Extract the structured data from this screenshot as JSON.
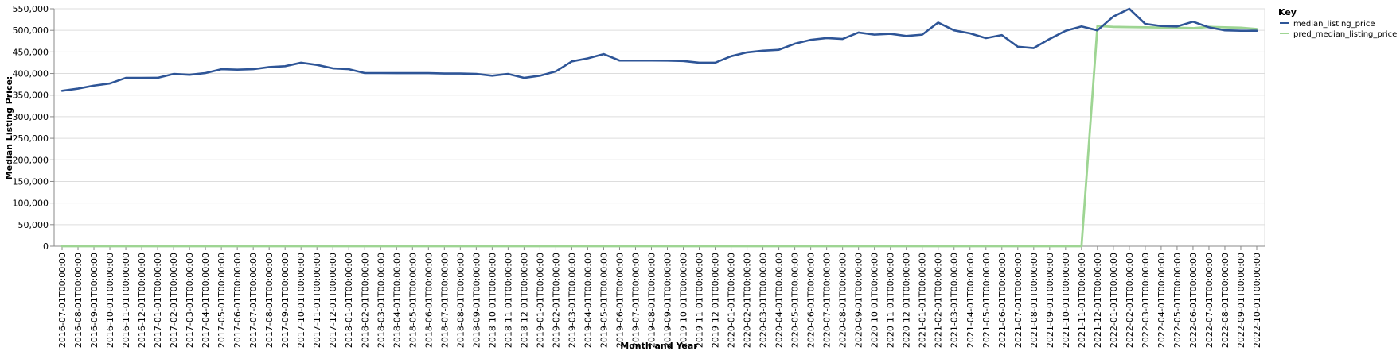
{
  "chart_data": {
    "type": "line",
    "xlabel": "Month and Year",
    "ylabel": "Median Listing Price:",
    "ylim": [
      0,
      550000
    ],
    "y_ticks": [
      "0",
      "50,000",
      "100,000",
      "150,000",
      "200,000",
      "250,000",
      "300,000",
      "350,000",
      "400,000",
      "450,000",
      "500,000",
      "550,000"
    ],
    "y_tick_values": [
      0,
      50000,
      100000,
      150000,
      200000,
      250000,
      300000,
      350000,
      400000,
      450000,
      500000,
      550000
    ],
    "grid": true,
    "legend": {
      "title": "Key",
      "position": "top-right"
    },
    "x": [
      "2016-07-01T00:00:00",
      "2016-08-01T00:00:00",
      "2016-09-01T00:00:00",
      "2016-10-01T00:00:00",
      "2016-11-01T00:00:00",
      "2016-12-01T00:00:00",
      "2017-01-01T00:00:00",
      "2017-02-01T00:00:00",
      "2017-03-01T00:00:00",
      "2017-04-01T00:00:00",
      "2017-05-01T00:00:00",
      "2017-06-01T00:00:00",
      "2017-07-01T00:00:00",
      "2017-08-01T00:00:00",
      "2017-09-01T00:00:00",
      "2017-10-01T00:00:00",
      "2017-11-01T00:00:00",
      "2017-12-01T00:00:00",
      "2018-01-01T00:00:00",
      "2018-02-01T00:00:00",
      "2018-03-01T00:00:00",
      "2018-04-01T00:00:00",
      "2018-05-01T00:00:00",
      "2018-06-01T00:00:00",
      "2018-07-01T00:00:00",
      "2018-08-01T00:00:00",
      "2018-09-01T00:00:00",
      "2018-10-01T00:00:00",
      "2018-11-01T00:00:00",
      "2018-12-01T00:00:00",
      "2019-01-01T00:00:00",
      "2019-02-01T00:00:00",
      "2019-03-01T00:00:00",
      "2019-04-01T00:00:00",
      "2019-05-01T00:00:00",
      "2019-06-01T00:00:00",
      "2019-07-01T00:00:00",
      "2019-08-01T00:00:00",
      "2019-09-01T00:00:00",
      "2019-10-01T00:00:00",
      "2019-11-01T00:00:00",
      "2019-12-01T00:00:00",
      "2020-01-01T00:00:00",
      "2020-02-01T00:00:00",
      "2020-03-01T00:00:00",
      "2020-04-01T00:00:00",
      "2020-05-01T00:00:00",
      "2020-06-01T00:00:00",
      "2020-07-01T00:00:00",
      "2020-08-01T00:00:00",
      "2020-09-01T00:00:00",
      "2020-10-01T00:00:00",
      "2020-11-01T00:00:00",
      "2020-12-01T00:00:00",
      "2021-01-01T00:00:00",
      "2021-02-01T00:00:00",
      "2021-03-01T00:00:00",
      "2021-04-01T00:00:00",
      "2021-05-01T00:00:00",
      "2021-06-01T00:00:00",
      "2021-07-01T00:00:00",
      "2021-08-01T00:00:00",
      "2021-09-01T00:00:00",
      "2021-10-01T00:00:00",
      "2021-11-01T00:00:00",
      "2021-12-01T00:00:00",
      "2022-01-01T00:00:00",
      "2022-02-01T00:00:00",
      "2022-03-01T00:00:00",
      "2022-04-01T00:00:00",
      "2022-05-01T00:00:00",
      "2022-06-01T00:00:00",
      "2022-07-01T00:00:00",
      "2022-08-01T00:00:00",
      "2022-09-01T00:00:00",
      "2022-10-01T00:00:00"
    ],
    "series": [
      {
        "name": "median_listing_price",
        "color": "#2e5597",
        "values": [
          359900,
          365000,
          372000,
          377000,
          389900,
          389900,
          390000,
          399000,
          397000,
          401000,
          410000,
          409000,
          410000,
          414900,
          417000,
          425000,
          420000,
          412000,
          410000,
          401000,
          401000,
          400900,
          400900,
          400900,
          400000,
          399900,
          399000,
          394900,
          399000,
          389900,
          394900,
          405000,
          428000,
          435000,
          445000,
          430000,
          430000,
          430000,
          429900,
          429000,
          425000,
          425000,
          440000,
          449000,
          452900,
          455000,
          469000,
          478000,
          482000,
          480000,
          495000,
          490000,
          492000,
          487000,
          490000,
          518000,
          500000,
          493000,
          482000,
          489000,
          462000,
          458900,
          480000,
          499000,
          509000,
          500000,
          532000,
          550000,
          515000,
          510000,
          509000,
          520000,
          507000,
          500000,
          499000,
          499000
        ]
      },
      {
        "name": "pred_median_listing_price",
        "color": "#9ed593",
        "values": [
          0,
          0,
          0,
          0,
          0,
          0,
          0,
          0,
          0,
          0,
          0,
          0,
          0,
          0,
          0,
          0,
          0,
          0,
          0,
          0,
          0,
          0,
          0,
          0,
          0,
          0,
          0,
          0,
          0,
          0,
          0,
          0,
          0,
          0,
          0,
          0,
          0,
          0,
          0,
          0,
          0,
          0,
          0,
          0,
          0,
          0,
          0,
          0,
          0,
          0,
          0,
          0,
          0,
          0,
          0,
          0,
          0,
          0,
          0,
          0,
          0,
          0,
          0,
          0,
          0,
          510000,
          508000,
          507500,
          507000,
          506500,
          506000,
          505000,
          508000,
          507000,
          506000,
          503000
        ]
      }
    ]
  }
}
